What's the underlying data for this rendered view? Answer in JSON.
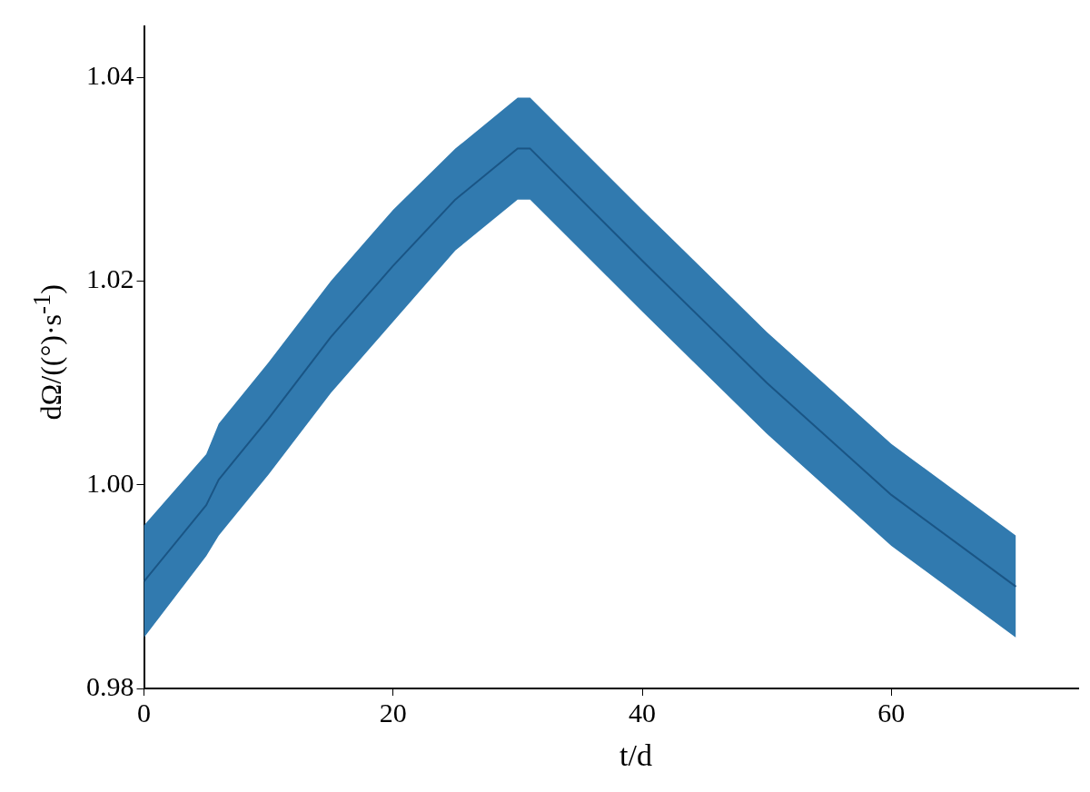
{
  "chart_data": {
    "type": "line",
    "xlabel": "t/d",
    "ylabel": "dΩ/((°)·s$^{-1}$)",
    "x": [
      0,
      5,
      6,
      10,
      15,
      20,
      25,
      30,
      31,
      40,
      50,
      60,
      70
    ],
    "series": [
      {
        "color": "#1a5585",
        "values": [
          0.9905,
          0.998,
          1.0005,
          1.0065,
          1.0145,
          1.0215,
          1.028,
          1.033,
          1.033,
          1.022,
          1.01,
          0.999,
          0.99
        ],
        "lower": [
          0.985,
          0.993,
          0.995,
          1.001,
          1.009,
          1.016,
          1.023,
          1.028,
          1.028,
          1.017,
          1.005,
          0.994,
          0.985
        ],
        "upper": [
          0.996,
          1.003,
          1.006,
          1.012,
          1.02,
          1.027,
          1.033,
          1.038,
          1.038,
          1.027,
          1.015,
          1.004,
          0.995
        ]
      }
    ],
    "xlim": [
      0,
      75
    ],
    "xticks": [
      0,
      20,
      40,
      60
    ],
    "ylim": [
      0.98,
      1.045
    ],
    "yticks": [
      0.98,
      {
        "value": 1.0,
        "label": "1.00"
      },
      1.02,
      1.04
    ],
    "grid": false,
    "legend": false,
    "marker": "none"
  }
}
